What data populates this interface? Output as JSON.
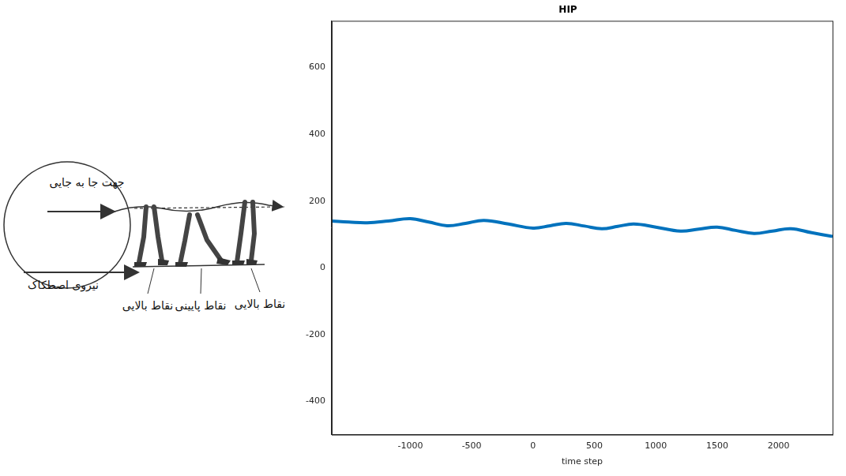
{
  "chart_data": {
    "type": "line",
    "title": "HIP",
    "x_label": "time step",
    "x": [
      -1640,
      -1500,
      -1350,
      -1180,
      -1000,
      -850,
      -700,
      -550,
      -400,
      -200,
      0,
      140,
      270,
      420,
      560,
      690,
      820,
      1000,
      1200,
      1350,
      1500,
      1650,
      1800,
      1950,
      2100,
      2270,
      2440
    ],
    "values": [
      140,
      137,
      135,
      140,
      147,
      137,
      126,
      133,
      142,
      131,
      119,
      126,
      133,
      125,
      117,
      124,
      131,
      122,
      110,
      116,
      122,
      112,
      103,
      110,
      117,
      105,
      94
    ],
    "color": "#0072bd",
    "xlim": [
      -1640,
      2440
    ],
    "xticks": [
      -1000,
      -500,
      0,
      500,
      1000,
      1500,
      2000
    ],
    "ylim": [
      -500,
      740
    ],
    "yticks": [
      600,
      400,
      200,
      0,
      -200,
      -400
    ],
    "grid": false
  },
  "diagram": {
    "direction_label": "جهت جا به جایی",
    "friction_label": "نیروی اصطکاک",
    "point_labels": [
      "نقاط بالایی",
      "نقاط پایینی",
      "نقاط بالایی"
    ]
  }
}
